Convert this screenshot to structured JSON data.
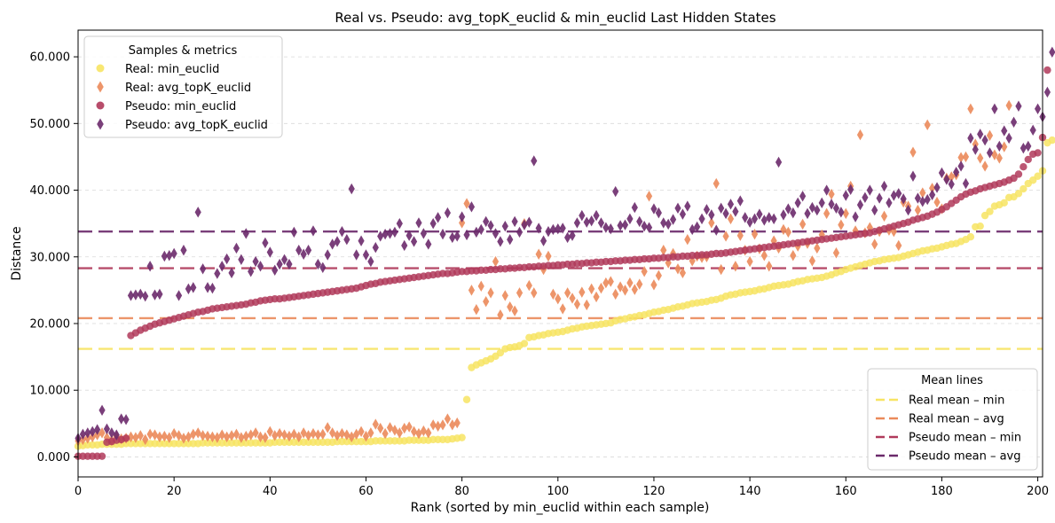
{
  "chart_data": {
    "type": "scatter",
    "title": "Real vs. Pseudo: avg_topK_euclid & min_euclid Last Hidden States",
    "xlabel": "Rank (sorted by min_euclid within each sample)",
    "ylabel": "Distance",
    "xlim": [
      0,
      201
    ],
    "ylim": [
      -3,
      64
    ],
    "x_ticks": [
      0,
      20,
      40,
      60,
      80,
      100,
      120,
      140,
      160,
      180,
      200
    ],
    "y_ticks": [
      0,
      10000,
      20000,
      30000,
      40000,
      50000,
      60000
    ],
    "y_tick_labels": [
      "0.000",
      "10.000",
      "20.000",
      "30.000",
      "40.000",
      "50.000",
      "60.000"
    ],
    "grid": "y-dashed",
    "legend_samples": {
      "title": "Samples & metrics",
      "position": "upper-left",
      "entries": [
        "Real: min_euclid",
        "Real: avg_topK_euclid",
        "Pseudo: min_euclid",
        "Pseudo: avg_topK_euclid"
      ]
    },
    "legend_means": {
      "title": "Mean lines",
      "position": "lower-right",
      "entries": [
        "Real mean – min",
        "Real mean – avg",
        "Pseudo mean – min",
        "Pseudo mean – avg"
      ]
    },
    "colors": {
      "real_min": "#f7e463",
      "real_avg": "#eb8a5a",
      "pseudo_min": "#b03a5b",
      "pseudo_avg": "#6b2a6b"
    },
    "mean_lines": {
      "real_min": 16.2,
      "real_avg": 20.8,
      "pseudo_min": 28.3,
      "pseudo_avg": 33.8
    },
    "series": [
      {
        "name": "Real: min_euclid",
        "marker": "circle",
        "color": "#f7e463",
        "values": [
          1.6,
          1.7,
          1.8,
          1.8,
          1.8,
          1.9,
          1.9,
          1.9,
          1.9,
          1.9,
          2.0,
          2.0,
          2.0,
          2.0,
          2.0,
          2.0,
          2.0,
          2.0,
          2.0,
          2.0,
          2.0,
          2.0,
          2.0,
          2.0,
          2.0,
          2.0,
          2.1,
          2.1,
          2.1,
          2.1,
          2.1,
          2.1,
          2.1,
          2.1,
          2.1,
          2.1,
          2.1,
          2.1,
          2.1,
          2.1,
          2.1,
          2.2,
          2.2,
          2.2,
          2.2,
          2.2,
          2.2,
          2.2,
          2.2,
          2.2,
          2.2,
          2.2,
          2.2,
          2.2,
          2.3,
          2.3,
          2.3,
          2.3,
          2.3,
          2.3,
          2.3,
          2.3,
          2.4,
          2.4,
          2.4,
          2.4,
          2.4,
          2.4,
          2.4,
          2.5,
          2.5,
          2.5,
          2.5,
          2.5,
          2.6,
          2.6,
          2.6,
          2.6,
          2.7,
          2.8,
          2.9,
          8.6,
          13.4,
          13.8,
          14.1,
          14.4,
          14.7,
          15.1,
          15.6,
          16.2,
          16.4,
          16.5,
          16.7,
          17.0,
          17.9,
          18.0,
          18.2,
          18.3,
          18.5,
          18.6,
          18.7,
          18.8,
          19.0,
          19.2,
          19.3,
          19.5,
          19.6,
          19.7,
          19.8,
          19.9,
          20.0,
          20.1,
          20.4,
          20.6,
          20.7,
          20.9,
          21.0,
          21.2,
          21.3,
          21.5,
          21.7,
          21.8,
          22.0,
          22.1,
          22.3,
          22.5,
          22.6,
          22.8,
          23.0,
          23.1,
          23.2,
          23.3,
          23.5,
          23.6,
          23.8,
          24.1,
          24.3,
          24.4,
          24.6,
          24.7,
          24.8,
          24.9,
          25.1,
          25.2,
          25.4,
          25.6,
          25.7,
          25.8,
          25.9,
          26.1,
          26.3,
          26.4,
          26.6,
          26.7,
          26.8,
          26.9,
          27.1,
          27.3,
          27.6,
          27.8,
          28.1,
          28.3,
          28.5,
          28.7,
          28.9,
          29.1,
          29.3,
          29.4,
          29.6,
          29.7,
          29.8,
          29.9,
          30.1,
          30.3,
          30.5,
          30.7,
          30.9,
          31.0,
          31.2,
          31.3,
          31.5,
          31.7,
          31.9,
          32.0,
          32.3,
          32.6,
          33.0,
          34.5,
          34.6,
          36.2,
          36.8,
          37.6,
          37.8,
          38.1,
          38.9,
          39.0,
          39.5,
          40.2,
          41.0,
          41.5,
          42.1,
          42.9,
          47.1,
          47.5
        ]
      },
      {
        "name": "Real: avg_topK_euclid",
        "marker": "diamond",
        "color": "#eb8a5a",
        "values": [
          2.4,
          2.6,
          2.8,
          3.0,
          3.3,
          3.6,
          2.9,
          2.5,
          3.1,
          2.7,
          2.8,
          3.0,
          2.9,
          3.2,
          2.6,
          3.4,
          3.3,
          3.0,
          3.1,
          2.9,
          3.5,
          3.2,
          2.8,
          3.0,
          3.4,
          3.6,
          3.2,
          3.1,
          3.0,
          2.9,
          3.3,
          3.0,
          3.2,
          3.4,
          2.9,
          3.1,
          3.3,
          3.6,
          3.0,
          2.9,
          3.8,
          3.2,
          3.5,
          3.3,
          3.1,
          3.4,
          3.0,
          3.6,
          3.2,
          3.5,
          3.3,
          3.4,
          4.4,
          3.6,
          3.2,
          3.5,
          3.3,
          3.0,
          3.4,
          3.8,
          3.1,
          3.6,
          4.9,
          4.3,
          3.5,
          4.4,
          4.0,
          3.6,
          4.3,
          4.5,
          3.8,
          3.5,
          3.9,
          3.6,
          4.8,
          4.6,
          4.8,
          5.7,
          4.8,
          5.1,
          35.1,
          38.0,
          25.0,
          22.1,
          25.6,
          23.3,
          24.6,
          29.3,
          21.3,
          24.2,
          22.5,
          21.9,
          24.6,
          35.0,
          25.7,
          24.6,
          30.4,
          28.1,
          30.1,
          24.4,
          23.7,
          22.2,
          24.6,
          23.8,
          22.9,
          24.7,
          22.8,
          25.2,
          24.0,
          25.3,
          26.1,
          26.3,
          24.4,
          25.5,
          25.0,
          26.1,
          25.1,
          25.9,
          27.8,
          39.1,
          25.8,
          27.2,
          31.0,
          29.1,
          30.5,
          28.2,
          27.6,
          32.6,
          29.4,
          30.1,
          29.9,
          30.0,
          35.1,
          41.0,
          28.1,
          33.1,
          35.7,
          28.6,
          33.2,
          31.0,
          29.3,
          33.4,
          31.2,
          30.2,
          28.6,
          32.4,
          31.3,
          34.1,
          33.7,
          30.2,
          31.6,
          34.9,
          32.0,
          29.4,
          31.3,
          33.3,
          36.5,
          39.4,
          30.6,
          34.8,
          36.5,
          40.6,
          33.9,
          48.3,
          33.6,
          34.4,
          31.9,
          33.8,
          36.1,
          34.0,
          33.8,
          31.7,
          38.2,
          37.6,
          45.7,
          37.0,
          39.6,
          49.8,
          40.3,
          38.2,
          37.2,
          41.8,
          42.0,
          42.3,
          44.9,
          45.0,
          52.2,
          46.9,
          44.8,
          43.6,
          48.2,
          45.3,
          44.8,
          46.5,
          52.7
        ]
      },
      {
        "name": "Pseudo: min_euclid",
        "marker": "circle",
        "color": "#b03a5b",
        "values": [
          0.1,
          0.1,
          0.1,
          0.1,
          0.1,
          0.1,
          2.2,
          2.3,
          2.5,
          2.6,
          2.8,
          18.2,
          18.6,
          19.0,
          19.3,
          19.6,
          19.9,
          20.1,
          20.3,
          20.5,
          20.7,
          20.9,
          21.1,
          21.3,
          21.5,
          21.7,
          21.8,
          22.0,
          22.2,
          22.3,
          22.4,
          22.5,
          22.6,
          22.7,
          22.8,
          22.9,
          23.1,
          23.2,
          23.4,
          23.5,
          23.6,
          23.7,
          23.7,
          23.8,
          23.9,
          24.0,
          24.1,
          24.2,
          24.3,
          24.4,
          24.5,
          24.6,
          24.7,
          24.8,
          24.9,
          25.0,
          25.1,
          25.2,
          25.3,
          25.5,
          25.7,
          25.9,
          26.0,
          26.2,
          26.3,
          26.4,
          26.5,
          26.6,
          26.7,
          26.8,
          26.9,
          27.0,
          27.1,
          27.2,
          27.3,
          27.4,
          27.5,
          27.5,
          27.6,
          27.7,
          27.8,
          27.8,
          27.9,
          27.9,
          28.0,
          28.0,
          28.1,
          28.1,
          28.2,
          28.2,
          28.3,
          28.3,
          28.4,
          28.4,
          28.5,
          28.5,
          28.6,
          28.6,
          28.7,
          28.7,
          28.8,
          28.8,
          28.9,
          28.9,
          29.0,
          29.0,
          29.1,
          29.1,
          29.2,
          29.2,
          29.3,
          29.3,
          29.4,
          29.4,
          29.5,
          29.5,
          29.6,
          29.6,
          29.7,
          29.7,
          29.8,
          29.8,
          29.9,
          29.9,
          30.0,
          30.0,
          30.1,
          30.1,
          30.2,
          30.2,
          30.3,
          30.3,
          30.4,
          30.5,
          30.5,
          30.6,
          30.7,
          30.8,
          30.9,
          31.0,
          31.1,
          31.2,
          31.3,
          31.4,
          31.5,
          31.6,
          31.7,
          31.8,
          31.9,
          32.0,
          32.1,
          32.2,
          32.3,
          32.4,
          32.5,
          32.6,
          32.7,
          32.8,
          32.9,
          33.0,
          33.1,
          33.2,
          33.3,
          33.4,
          33.5,
          33.6,
          33.8,
          34.0,
          34.2,
          34.4,
          34.6,
          34.8,
          35.0,
          35.2,
          35.5,
          35.7,
          35.9,
          36.1,
          36.4,
          36.7,
          37.1,
          37.5,
          38.0,
          38.5,
          39.0,
          39.4,
          39.7,
          39.9,
          40.2,
          40.4,
          40.6,
          40.8,
          41.0,
          41.2,
          41.5,
          41.8,
          42.4,
          43.5,
          44.6,
          45.4,
          45.6,
          47.9,
          58.0
        ]
      },
      {
        "name": "Pseudo: avg_topK_euclid",
        "marker": "diamond",
        "color": "#6b2a6b",
        "values": [
          2.8,
          3.4,
          3.6,
          3.8,
          4.1,
          7.0,
          4.2,
          3.6,
          3.3,
          5.7,
          5.6,
          24.2,
          24.3,
          24.4,
          24.1,
          28.6,
          24.3,
          24.4,
          30.1,
          30.2,
          30.5,
          24.2,
          31.0,
          25.2,
          25.4,
          36.7,
          28.2,
          25.4,
          25.3,
          27.5,
          28.6,
          29.7,
          27.6,
          31.3,
          29.6,
          33.5,
          27.8,
          29.3,
          28.6,
          32.1,
          30.7,
          28.0,
          28.9,
          29.6,
          28.9,
          33.7,
          31.0,
          30.4,
          31.0,
          33.9,
          28.9,
          28.4,
          30.3,
          31.9,
          32.3,
          33.8,
          32.6,
          40.2,
          30.3,
          32.4,
          30.3,
          29.3,
          31.4,
          33.1,
          33.4,
          33.5,
          33.7,
          35.0,
          31.7,
          33.2,
          32.3,
          35.1,
          33.5,
          31.9,
          35.0,
          35.9,
          33.4,
          36.6,
          32.9,
          33.1,
          36.0,
          33.3,
          37.5,
          33.7,
          34.1,
          35.3,
          34.7,
          33.5,
          32.3,
          34.6,
          32.6,
          35.3,
          33.7,
          34.8,
          35.2,
          44.4,
          34.3,
          32.4,
          33.8,
          34.1,
          34.2,
          34.3,
          32.9,
          33.2,
          35.1,
          36.2,
          35.2,
          35.4,
          36.2,
          35.1,
          34.4,
          34.2,
          39.8,
          34.7,
          34.8,
          35.7,
          37.4,
          35.3,
          34.6,
          34.4,
          37.2,
          36.6,
          35.1,
          34.9,
          35.6,
          37.3,
          36.4,
          37.6,
          34.1,
          34.5,
          35.7,
          37.1,
          36.3,
          34.0,
          37.3,
          36.5,
          37.9,
          36.8,
          38.4,
          35.9,
          35.2,
          35.7,
          36.4,
          35.5,
          35.9,
          35.7,
          44.2,
          36.3,
          37.2,
          36.6,
          38.1,
          39.1,
          36.5,
          37.4,
          37.0,
          38.1,
          40.0,
          37.9,
          37.3,
          36.7,
          39.2,
          40.1,
          36.0,
          37.8,
          38.9,
          40.0,
          37.0,
          38.8,
          40.6,
          38.1,
          39.2,
          39.5,
          38.7,
          37.0,
          42.1,
          38.8,
          38.3,
          38.6,
          39.3,
          40.4,
          42.6,
          41.6,
          40.9,
          42.7,
          43.6,
          41.0,
          47.8,
          46.1,
          48.4,
          47.5,
          45.6,
          52.2,
          46.6,
          48.9,
          47.8,
          50.2,
          52.6,
          46.3,
          46.6,
          49.0,
          52.2,
          51.0,
          54.7,
          60.7
        ]
      }
    ]
  }
}
